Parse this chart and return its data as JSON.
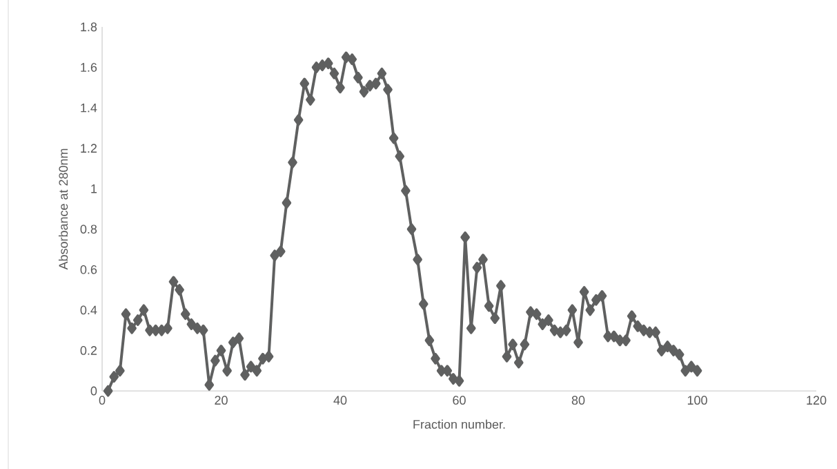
{
  "chart_data": {
    "type": "line",
    "xlabel": "Fraction number.",
    "ylabel": "Absorbance at 280nm",
    "x": [
      1,
      2,
      3,
      4,
      5,
      6,
      7,
      8,
      9,
      10,
      11,
      12,
      13,
      14,
      15,
      16,
      17,
      18,
      19,
      20,
      21,
      22,
      23,
      24,
      25,
      26,
      27,
      28,
      29,
      30,
      31,
      32,
      33,
      34,
      35,
      36,
      37,
      38,
      39,
      40,
      41,
      42,
      43,
      44,
      45,
      46,
      47,
      48,
      49,
      50,
      51,
      52,
      53,
      54,
      55,
      56,
      57,
      58,
      59,
      60,
      61,
      62,
      63,
      64,
      65,
      66,
      67,
      68,
      69,
      70,
      71,
      72,
      73,
      74,
      75,
      76,
      77,
      78,
      79,
      80,
      81,
      82,
      83,
      84,
      85,
      86,
      87,
      88,
      89,
      90,
      91,
      92,
      93,
      94,
      95,
      96,
      97,
      98,
      99,
      100
    ],
    "values": [
      0.0,
      0.07,
      0.1,
      0.38,
      0.31,
      0.35,
      0.4,
      0.3,
      0.3,
      0.3,
      0.31,
      0.54,
      0.5,
      0.38,
      0.33,
      0.31,
      0.3,
      0.03,
      0.15,
      0.2,
      0.1,
      0.24,
      0.26,
      0.08,
      0.12,
      0.1,
      0.16,
      0.17,
      0.67,
      0.69,
      0.93,
      1.13,
      1.34,
      1.52,
      1.44,
      1.6,
      1.61,
      1.62,
      1.57,
      1.5,
      1.65,
      1.64,
      1.55,
      1.48,
      1.51,
      1.52,
      1.57,
      1.49,
      1.25,
      1.16,
      0.99,
      0.8,
      0.65,
      0.43,
      0.25,
      0.16,
      0.1,
      0.1,
      0.06,
      0.05,
      0.76,
      0.31,
      0.61,
      0.65,
      0.42,
      0.36,
      0.52,
      0.17,
      0.23,
      0.14,
      0.23,
      0.39,
      0.38,
      0.33,
      0.35,
      0.3,
      0.29,
      0.3,
      0.4,
      0.24,
      0.49,
      0.4,
      0.45,
      0.47,
      0.27,
      0.27,
      0.25,
      0.25,
      0.37,
      0.32,
      0.3,
      0.29,
      0.29,
      0.2,
      0.22,
      0.2,
      0.18,
      0.1,
      0.12,
      0.1
    ],
    "color": "#5f6060",
    "marker": "diamond",
    "line_style": "solid",
    "xlim": [
      0,
      120
    ],
    "ylim": [
      0,
      1.8
    ],
    "xticks": [
      0,
      20,
      40,
      60,
      80,
      100,
      120
    ],
    "yticks": [
      0,
      0.2,
      0.4,
      0.6,
      0.8,
      1,
      1.2,
      1.4,
      1.6,
      1.8
    ]
  }
}
